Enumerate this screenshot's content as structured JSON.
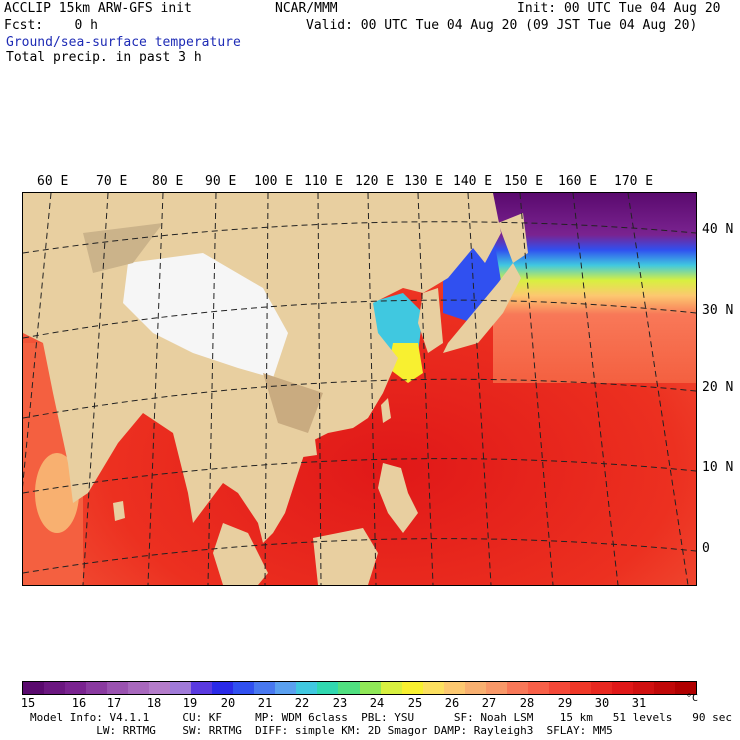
{
  "header": {
    "line1_left": "ACCLIP 15km ARW-GFS init",
    "line1_center": "NCAR/MMM",
    "line1_right": "Init: 00 UTC Tue 04 Aug 20",
    "line2_left": "Fcst:    0 h",
    "line2_right": "Valid: 00 UTC Tue 04 Aug 20 (09 JST Tue 04 Aug 20)",
    "field1": "Ground/sea-surface temperature",
    "field2": "Total precip. in past 3 h"
  },
  "map": {
    "lon_labels": [
      "60 E",
      "70 E",
      "80 E",
      "90 E",
      "100 E",
      "110 E",
      "120 E",
      "130 E",
      "140 E",
      "150 E",
      "160 E",
      "170 E"
    ],
    "lat_labels": [
      "40 N",
      "30 N",
      "20 N",
      "10 N",
      "0"
    ]
  },
  "colorbar": {
    "unit": "°C",
    "ticks": [
      "15",
      "16",
      "17",
      "18",
      "19",
      "20",
      "21",
      "22",
      "23",
      "24",
      "25",
      "26",
      "27",
      "28",
      "29",
      "30",
      "31"
    ],
    "colors": [
      "#5a0a6e",
      "#6b1780",
      "#7a2390",
      "#8a3aa0",
      "#9a52b0",
      "#a868bd",
      "#b47cca",
      "#a07ad8",
      "#5a3ae0",
      "#2a2ae8",
      "#3050f0",
      "#4878f0",
      "#5aa0f0",
      "#40c8e0",
      "#30d8b0",
      "#50e080",
      "#90e858",
      "#d8f040",
      "#f8f030",
      "#fce060",
      "#fcc870",
      "#f8b070",
      "#f89868",
      "#f87858",
      "#f86048",
      "#f44838",
      "#f03828",
      "#e82820",
      "#e01818",
      "#d01010",
      "#c00808",
      "#b00000"
    ]
  },
  "footer": {
    "line1": "Model Info: V4.1.1     CU: KF     MP: WDM 6class  PBL: YSU      SF: Noah LSM    15 km   51 levels   90 sec",
    "line2": "          LW: RRTMG    SW: RRTMG  DIFF: simple KM: 2D Smagor DAMP: Rayleigh3  SFLAY: MM5"
  }
}
